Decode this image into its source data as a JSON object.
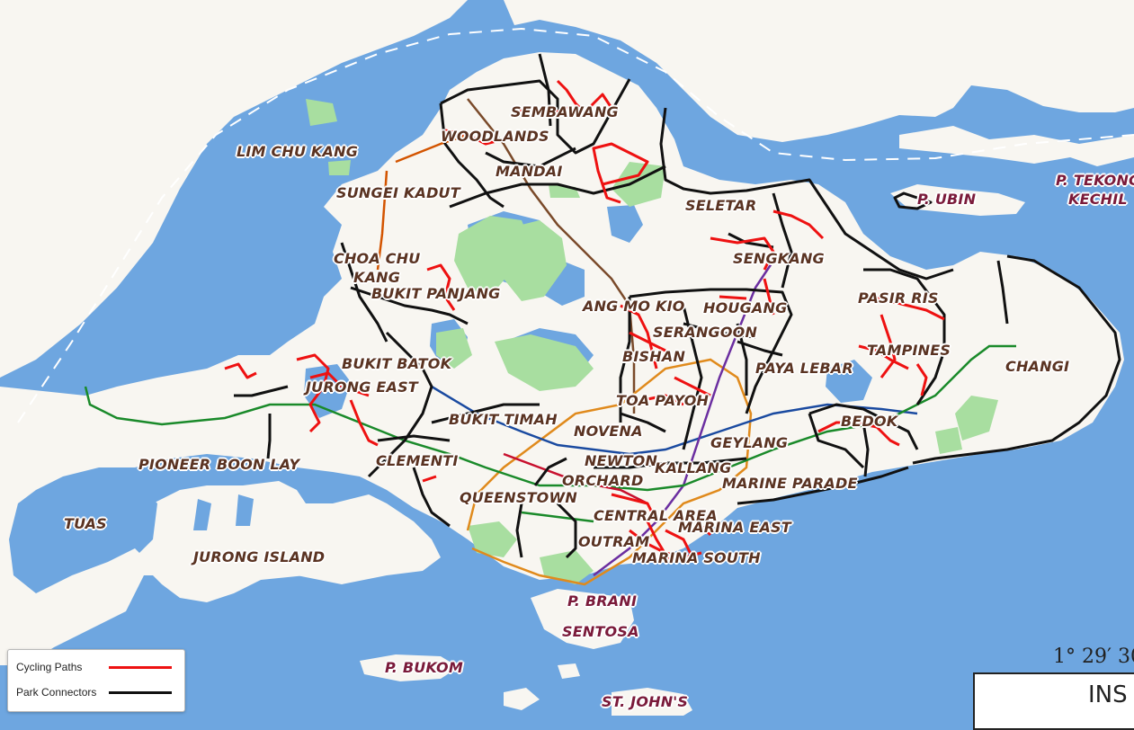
{
  "colors": {
    "sea": "#6ea6e0",
    "land": "#f8f6f1",
    "park": "#a8dea0",
    "cycling": "#ee1111",
    "connector": "#111111"
  },
  "districts": {
    "lim_chu_kang": "LIM CHU KANG",
    "sungei_kadut": "SUNGEI KADUT",
    "woodlands": "WOODLANDS",
    "sembawang": "SEMBAWANG",
    "mandai": "MANDAI",
    "seletar": "SELETAR",
    "sengkang": "SENGKANG",
    "choa_chu_kang_1": "CHOA CHU",
    "choa_chu_kang_2": "KANG",
    "bukit_panjang": "BUKIT PANJANG",
    "ang_mo_kio": "ANG MO KIO",
    "hougang": "HOUGANG",
    "serangoon": "SERANGOON",
    "pasir_ris": "PASIR RIS",
    "tampines": "TAMPINES",
    "changi": "CHANGI",
    "paya_lebar": "PAYA LEBAR",
    "bishan": "BISHAN",
    "bukit_batok": "BUKIT BATOK",
    "jurong_east": "JURONG EAST",
    "toa_payoh": "TOA PAYOH",
    "bukit_timah": "BUKIT TIMAH",
    "novena": "NOVENA",
    "bedok": "BEDOK",
    "geylang": "GEYLANG",
    "newton": "NEWTON",
    "kallang": "KALLANG",
    "clementi": "CLEMENTI",
    "orchard": "ORCHARD",
    "marine_parade": "MARINE PARADE",
    "queenstown": "QUEENSTOWN",
    "pioneer": "PIONEER",
    "boon_lay": "BOON LAY",
    "central_area": "CENTRAL AREA",
    "marina_east": "MARINA EAST",
    "outram": "OUTRAM",
    "marina_south": "MARINA SOUTH",
    "tuas": "TUAS",
    "jurong_island": "JURONG ISLAND"
  },
  "islands": {
    "p_ubin": "P. UBIN",
    "p_tekong_1": "P. TEKONG",
    "p_tekong_2": "KECHIL",
    "p_brani": "P. BRANI",
    "sentosa": "SENTOSA",
    "p_bukom": "P. BUKOM",
    "st_johns": "ST. JOHN'S"
  },
  "legend": {
    "cycling_label": "Cycling Paths",
    "connector_label": "Park Connectors"
  },
  "coordinate_text": "1° 29′ 30",
  "inset_title": "INS"
}
